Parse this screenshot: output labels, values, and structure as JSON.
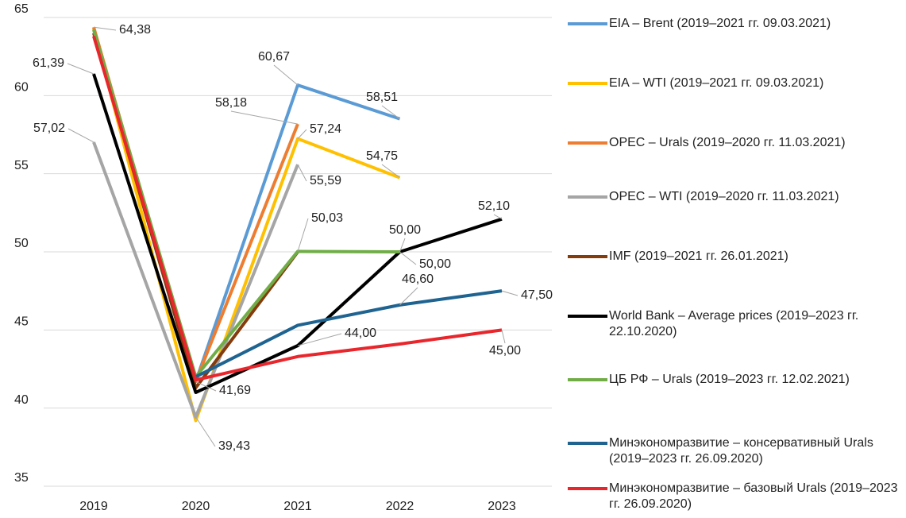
{
  "chart_data": {
    "type": "line",
    "categories": [
      "2019",
      "2020",
      "2021",
      "2022",
      "2023"
    ],
    "ylim": [
      35,
      65
    ],
    "yticks": [
      35,
      40,
      45,
      50,
      55,
      60,
      65
    ],
    "grid": true,
    "series": [
      {
        "name": "EIA – Brent (2019–2021 гг. 09.03.2021)",
        "color": "#5b9bd5",
        "values": [
          64.3,
          41.69,
          60.67,
          58.51,
          null
        ],
        "value_labels": [
          null,
          "41,69",
          "60,67",
          "58,51",
          null
        ]
      },
      {
        "name": "EIA – WTI (2019–2021 гг. 09.03.2021)",
        "color": "#ffc000",
        "values": [
          64.3,
          39.2,
          57.24,
          54.75,
          null
        ],
        "value_labels": [
          null,
          null,
          "57,24",
          "54,75",
          null
        ]
      },
      {
        "name": "OPEC – Urals (2019–2020 гг. 11.03.2021)",
        "color": "#ed7d31",
        "values": [
          64.38,
          41.7,
          58.18,
          null,
          null
        ],
        "value_labels": [
          "64,38",
          null,
          "58,18",
          null,
          null
        ]
      },
      {
        "name": "OPEC – WTI (2019–2020 гг. 11.03.2021)",
        "color": "#a5a5a5",
        "values": [
          57.02,
          39.43,
          55.59,
          null,
          null
        ],
        "value_labels": [
          "57,02",
          "39,43",
          "55,59",
          null,
          null
        ]
      },
      {
        "name": "IMF (2019–2021 гг. 26.01.2021)",
        "color": "#843c0c",
        "values": [
          64.0,
          41.3,
          50.0,
          null,
          null
        ],
        "value_labels": [
          null,
          null,
          null,
          null,
          null
        ]
      },
      {
        "name": "World Bank – Average prices (2019–2023 гг. 22.10.2020)",
        "color": "#000000",
        "values": [
          61.39,
          41.0,
          44.0,
          50.0,
          52.1
        ],
        "value_labels": [
          "61,39",
          null,
          "44,00",
          "50,00",
          "52,10"
        ]
      },
      {
        "name": "ЦБ РФ – Urals (2019–2023 гг. 12.02.2021)",
        "color": "#70ad47",
        "values": [
          64.2,
          42.0,
          50.03,
          50.0,
          null
        ],
        "value_labels": [
          null,
          null,
          "50,03",
          "50,00",
          null
        ]
      },
      {
        "name": "Минэкономразвитие – консервативный Urals (2019–2023 гг. 26.09.2020)",
        "color": "#1f6391",
        "values": [
          null,
          42.0,
          45.3,
          46.6,
          47.5
        ],
        "value_labels": [
          null,
          null,
          null,
          "46,60",
          "47,50"
        ]
      },
      {
        "name": "Минэкономразвитие – базовый Urals (2019–2023 гг. 26.09.2020)",
        "color": "#e8262c",
        "values": [
          63.8,
          41.8,
          43.3,
          44.1,
          45.0
        ],
        "value_labels": [
          null,
          null,
          null,
          null,
          "45,00"
        ]
      }
    ]
  }
}
